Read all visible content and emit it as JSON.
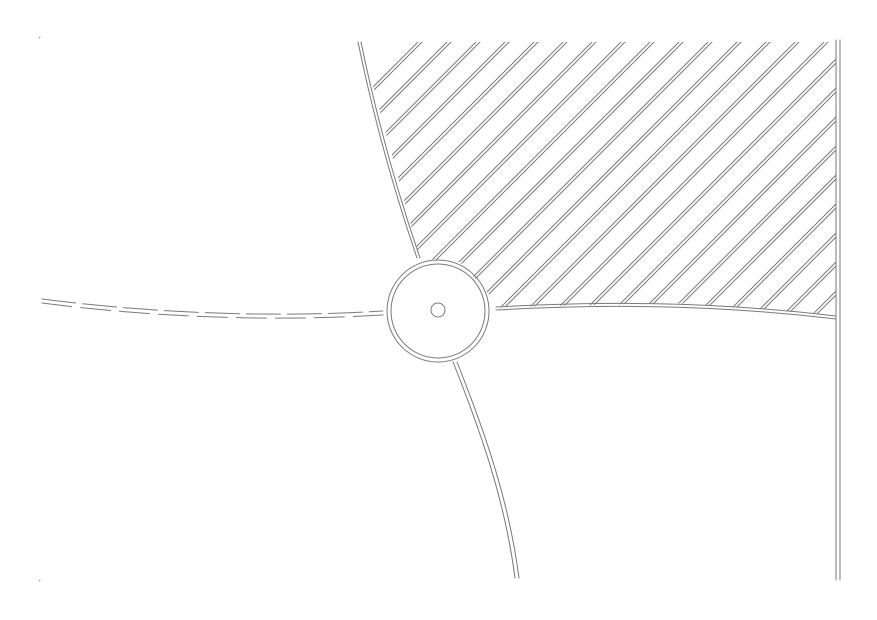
{
  "diagram": {
    "kind": "line-drawing",
    "labels": [],
    "colors": {
      "background": "#ffffff",
      "line": "#7a7a7a"
    },
    "elements": [
      "central-hub",
      "hub-center-point",
      "left-dashed-spoke",
      "top-spoke",
      "bottom-spoke",
      "right-boundary-edge",
      "right-frame-line",
      "hatched-region"
    ]
  }
}
